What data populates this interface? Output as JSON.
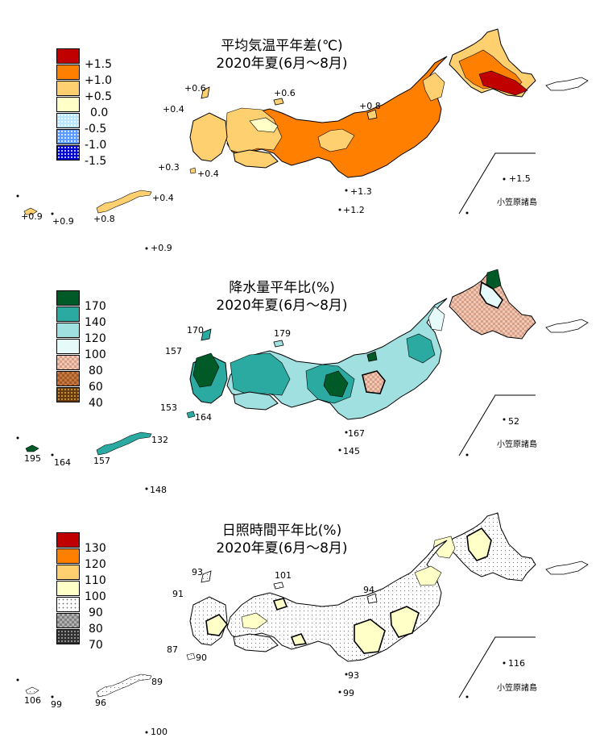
{
  "panels": [
    {
      "id": "temperature",
      "title_line1": "平均気温平年差(℃)",
      "title_line2": "2020年夏(6月～8月)",
      "legend": [
        {
          "label": "+1.5",
          "color": "#c00000",
          "pattern": "solid"
        },
        {
          "label": "+1.0",
          "color": "#ff8000",
          "pattern": "solid"
        },
        {
          "label": "+0.5",
          "color": "#ffd070",
          "pattern": "solid"
        },
        {
          "label": "0.0",
          "color": "#ffffc8",
          "pattern": "solid"
        },
        {
          "label": "-0.5",
          "color": "#b8e6ff",
          "pattern": "dots-light"
        },
        {
          "label": "-1.0",
          "color": "#5a9cff",
          "pattern": "dots"
        },
        {
          "label": "-1.5",
          "color": "#0000d0",
          "pattern": "dots"
        }
      ],
      "station_labels": [
        "+0.6",
        "+0.6",
        "+0.4",
        "+0.8",
        "+0.3",
        "+0.4",
        "+1.5",
        "+1.3",
        "+1.2",
        "+0.4",
        "+0.9",
        "+0.9",
        "+0.8",
        "+0.9"
      ],
      "ogasawara": "小笠原諸島"
    },
    {
      "id": "precipitation",
      "title_line1": "降水量平年比(%)",
      "title_line2": "2020年夏(6月～8月)",
      "legend": [
        {
          "label": "170",
          "color": "#005a28",
          "pattern": "solid"
        },
        {
          "label": "140",
          "color": "#2aaaa0",
          "pattern": "solid"
        },
        {
          "label": "120",
          "color": "#a0e0e0",
          "pattern": "solid"
        },
        {
          "label": "100",
          "color": "#e6fafa",
          "pattern": "solid"
        },
        {
          "label": "80",
          "color": "#f0c8b4",
          "pattern": "checker"
        },
        {
          "label": "60",
          "color": "#c87840",
          "pattern": "checker"
        },
        {
          "label": "40",
          "color": "#6a3a10",
          "pattern": "dots-dark"
        }
      ],
      "station_labels": [
        "170",
        "179",
        "157",
        "153",
        "164",
        "52",
        "167",
        "145",
        "132",
        "195",
        "164",
        "157",
        "148"
      ],
      "ogasawara": "小笠原諸島"
    },
    {
      "id": "sunshine",
      "title_line1": "日照時間平年比(%)",
      "title_line2": "2020年夏(6月～8月)",
      "legend": [
        {
          "label": "130",
          "color": "#c00000",
          "pattern": "solid"
        },
        {
          "label": "120",
          "color": "#ff8000",
          "pattern": "solid"
        },
        {
          "label": "110",
          "color": "#ffd070",
          "pattern": "solid"
        },
        {
          "label": "100",
          "color": "#ffffc8",
          "pattern": "solid"
        },
        {
          "label": "90",
          "color": "#ffffff",
          "pattern": "dots-light"
        },
        {
          "label": "80",
          "color": "#b0b0b0",
          "pattern": "checker"
        },
        {
          "label": "70",
          "color": "#303030",
          "pattern": "dots-dark"
        }
      ],
      "station_labels": [
        "93",
        "101",
        "91",
        "94",
        "87",
        "90",
        "116",
        "93",
        "99",
        "89",
        "106",
        "99",
        "96",
        "100"
      ],
      "ogasawara": "小笠原諸島"
    }
  ]
}
